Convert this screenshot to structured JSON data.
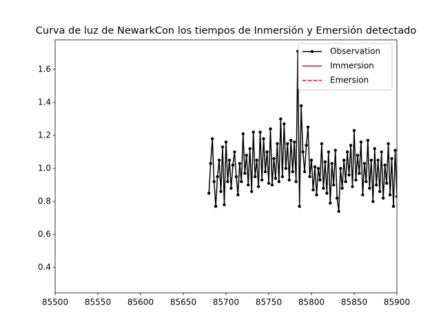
{
  "chart_data": {
    "type": "line",
    "title": "Curva de luz de NewarkCon los tiempos de Inmersión y Emersión detectado",
    "xlim": [
      85500,
      85900
    ],
    "xticks": [
      85500,
      85550,
      85600,
      85650,
      85700,
      85750,
      85800,
      85850,
      85900
    ],
    "ylim": [
      0.246,
      1.779
    ],
    "yticks": [
      0.4,
      0.6,
      0.8,
      {
        "value": 1,
        "label": "1.0"
      },
      1.2,
      1.4,
      1.6
    ],
    "legend": "upper right",
    "series": [
      {
        "name": "Observation",
        "color": "#000000",
        "marker": "circle",
        "x": [
          85680,
          85682,
          85684,
          85686,
          85688,
          85690,
          85692,
          85694,
          85696,
          85698,
          85700,
          85702,
          85704,
          85706,
          85708,
          85710,
          85712,
          85714,
          85716,
          85718,
          85720,
          85722,
          85724,
          85726,
          85728,
          85730,
          85732,
          85734,
          85736,
          85738,
          85740,
          85742,
          85744,
          85746,
          85748,
          85750,
          85752,
          85754,
          85756,
          85758,
          85760,
          85762,
          85764,
          85766,
          85768,
          85770,
          85772,
          85774,
          85776,
          85778,
          85780,
          85782,
          85784,
          85786,
          85788,
          85790,
          85792,
          85794,
          85796,
          85798,
          85800,
          85802,
          85804,
          85806,
          85808,
          85810,
          85812,
          85814,
          85816,
          85818,
          85820,
          85822,
          85824,
          85826,
          85828,
          85830,
          85832,
          85834,
          85836,
          85838,
          85840,
          85842,
          85844,
          85846,
          85848,
          85850,
          85852,
          85854,
          85856,
          85858,
          85860,
          85862,
          85864,
          85866,
          85868,
          85870,
          85872,
          85874,
          85876,
          85878,
          85880,
          85882,
          85884,
          85886,
          85888,
          85890,
          85892,
          85894,
          85896,
          85898,
          85900
        ],
        "values": [
          0.85,
          1.03,
          1.18,
          0.92,
          0.77,
          0.95,
          1.05,
          0.86,
          1.13,
          0.78,
          1.16,
          0.92,
          1.05,
          0.88,
          1.02,
          1.1,
          0.95,
          0.84,
          1.03,
          0.92,
          1.21,
          0.97,
          1.08,
          0.9,
          1.12,
          0.86,
          1.22,
          0.95,
          1.05,
          0.89,
          1.22,
          0.93,
          1.18,
          0.98,
          1.1,
          0.91,
          1.24,
          0.9,
          1.06,
          0.94,
          1.15,
          0.92,
          1.3,
          0.95,
          1.27,
          1.0,
          1.15,
          0.93,
          1.17,
          0.98,
          1.16,
          0.92,
          1.71,
          0.77,
          1.38,
          1.1,
          0.98,
          1.14,
          1.25,
          0.95,
          1.05,
          0.87,
          1.01,
          0.84,
          1.0,
          0.93,
          1.15,
          0.88,
          1.04,
          0.85,
          1.1,
          0.79,
          1.03,
          0.9,
          1.11,
          0.82,
          0.74,
          1.0,
          0.88,
          1.05,
          0.92,
          1.1,
          0.96,
          1.14,
          0.89,
          1.23,
          0.93,
          1.08,
          0.97,
          1.16,
          0.84,
          1.03,
          0.92,
          1.17,
          0.88,
          1.05,
          0.8,
          1.12,
          0.9,
          1.05,
          0.86,
          1.1,
          0.82,
          1.02,
          0.91,
          1.15,
          0.84,
          1.06,
          0.77,
          1.11,
          0.83
        ]
      },
      {
        "name": "Immersion",
        "color": "#ff0000",
        "linestyle": "solid"
      },
      {
        "name": "Emersion",
        "color": "#ff0000",
        "linestyle": "dashed"
      }
    ]
  }
}
